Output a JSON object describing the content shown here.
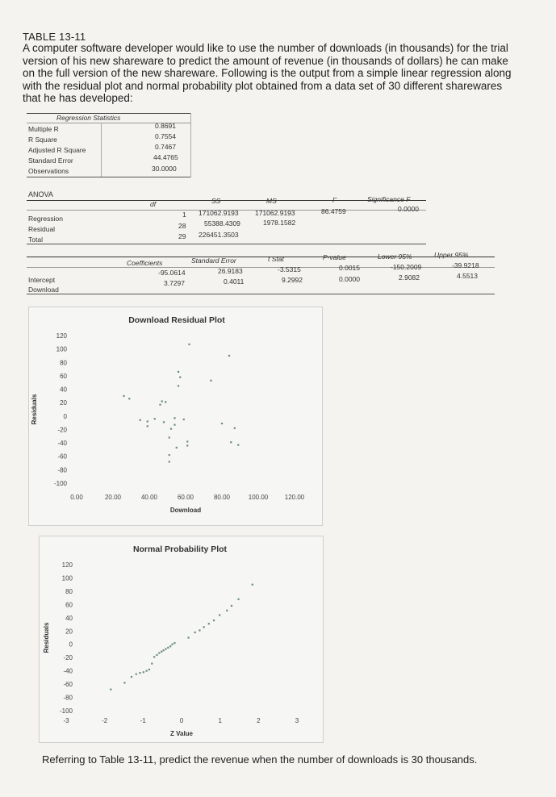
{
  "title": "TABLE 13-11",
  "intro": "A computer software developer would like to use the number of downloads (in thousands) for the trial version of his new shareware to predict the amount of revenue (in thousands of dollars) he can make on the full version of the new shareware. Following is the output from a simple linear regression along with the residual plot and normal probability plot obtained from a data set of 30 different sharewares that he has developed:",
  "regression_statistics": {
    "heading": "Regression Statistics",
    "rows": [
      {
        "label": "Multiple R",
        "value": "0.8691"
      },
      {
        "label": "R Square",
        "value": "0.7554"
      },
      {
        "label": "Adjusted R Square",
        "value": "0.7467"
      },
      {
        "label": "Standard Error",
        "value": "44.4765"
      },
      {
        "label": "Observations",
        "value": "30.0000"
      }
    ]
  },
  "anova": {
    "heading": "ANOVA",
    "columns": [
      "df",
      "SS",
      "MS",
      "F",
      "Significance F"
    ],
    "rows": [
      {
        "label": "Regression",
        "df": "1",
        "ss": "171062.9193",
        "ms": "171062.9193",
        "f": "86.4759",
        "sig": "0.0000"
      },
      {
        "label": "Residual",
        "df": "28",
        "ss": "55388.4309",
        "ms": "1978.1582",
        "f": "",
        "sig": ""
      },
      {
        "label": "Total",
        "df": "29",
        "ss": "226451.3503",
        "ms": "",
        "f": "",
        "sig": ""
      }
    ]
  },
  "coefficients": {
    "columns": [
      "Coefficients",
      "Standard Error",
      "t Stat",
      "P-value",
      "Lower 95%",
      "Upper 95%"
    ],
    "rows": [
      {
        "label": "Intercept",
        "coef": "-95.0614",
        "se": "26.9183",
        "t": "-3.5315",
        "p": "0.0015",
        "lower": "-150.2009",
        "upper": "-39.9218"
      },
      {
        "label": "Download",
        "coef": "3.7297",
        "se": "0.4011",
        "t": "9.2992",
        "p": "0.0000",
        "lower": "2.9082",
        "upper": "4.5513"
      }
    ]
  },
  "chart_data": [
    {
      "type": "scatter",
      "title": "Download Residual Plot",
      "xlabel": "Download",
      "ylabel": "Residuals",
      "xlim": [
        0,
        120
      ],
      "ylim": [
        -100,
        120
      ],
      "x_ticks": [
        "0.00",
        "20.00",
        "40.00",
        "60.00",
        "80.00",
        "100.00",
        "120.00"
      ],
      "y_ticks": [
        "120",
        "100",
        "80",
        "60",
        "40",
        "20",
        "0",
        "-20",
        "-40",
        "-60",
        "-80",
        "-100"
      ],
      "color": "#6b8e7a",
      "points": [
        {
          "x": 26,
          "y": 30
        },
        {
          "x": 29,
          "y": 26
        },
        {
          "x": 35,
          "y": -6
        },
        {
          "x": 39,
          "y": -8
        },
        {
          "x": 39,
          "y": -15
        },
        {
          "x": 43,
          "y": -4
        },
        {
          "x": 46,
          "y": 17
        },
        {
          "x": 47,
          "y": 22
        },
        {
          "x": 48,
          "y": -9
        },
        {
          "x": 49,
          "y": 21
        },
        {
          "x": 51,
          "y": -68
        },
        {
          "x": 51,
          "y": -58
        },
        {
          "x": 51,
          "y": -32
        },
        {
          "x": 52,
          "y": -19
        },
        {
          "x": 54,
          "y": -13
        },
        {
          "x": 54,
          "y": -3
        },
        {
          "x": 55,
          "y": -47
        },
        {
          "x": 56,
          "y": 66
        },
        {
          "x": 56,
          "y": 45
        },
        {
          "x": 57,
          "y": 58
        },
        {
          "x": 59,
          "y": -5
        },
        {
          "x": 61,
          "y": -38
        },
        {
          "x": 61,
          "y": -44
        },
        {
          "x": 62,
          "y": 107
        },
        {
          "x": 74,
          "y": 53
        },
        {
          "x": 80,
          "y": -11
        },
        {
          "x": 84,
          "y": 90
        },
        {
          "x": 85,
          "y": -39
        },
        {
          "x": 87,
          "y": -18
        },
        {
          "x": 89,
          "y": -43
        }
      ]
    },
    {
      "type": "scatter",
      "title": "Normal Probability Plot",
      "xlabel": "Z Value",
      "ylabel": "Residuals",
      "xlim": [
        -3,
        3
      ],
      "ylim": [
        -100,
        120
      ],
      "x_ticks": [
        "-3",
        "-2",
        "-1",
        "0",
        "1",
        "2",
        "3"
      ],
      "y_ticks": [
        "120",
        "100",
        "80",
        "60",
        "40",
        "20",
        "0",
        "-20",
        "-40",
        "-60",
        "-80",
        "-100"
      ],
      "color": "#6b8e7a",
      "points": [
        {
          "x": -1.84,
          "y": -68
        },
        {
          "x": -1.48,
          "y": -58
        },
        {
          "x": -1.3,
          "y": -49
        },
        {
          "x": -1.18,
          "y": -45
        },
        {
          "x": -1.08,
          "y": -43
        },
        {
          "x": -0.99,
          "y": -42
        },
        {
          "x": -0.91,
          "y": -40
        },
        {
          "x": -0.84,
          "y": -38
        },
        {
          "x": -0.77,
          "y": -29
        },
        {
          "x": -0.71,
          "y": -19
        },
        {
          "x": -0.64,
          "y": -16
        },
        {
          "x": -0.58,
          "y": -13
        },
        {
          "x": -0.52,
          "y": -11
        },
        {
          "x": -0.47,
          "y": -9
        },
        {
          "x": -0.41,
          "y": -7
        },
        {
          "x": -0.35,
          "y": -5
        },
        {
          "x": -0.29,
          "y": -3
        },
        {
          "x": -0.24,
          "y": 0
        },
        {
          "x": -0.18,
          "y": 2
        },
        {
          "x": 0.18,
          "y": 10
        },
        {
          "x": 0.35,
          "y": 18
        },
        {
          "x": 0.47,
          "y": 21
        },
        {
          "x": 0.58,
          "y": 26
        },
        {
          "x": 0.71,
          "y": 31
        },
        {
          "x": 0.84,
          "y": 36
        },
        {
          "x": 0.99,
          "y": 44
        },
        {
          "x": 1.18,
          "y": 51
        },
        {
          "x": 1.3,
          "y": 58
        },
        {
          "x": 1.48,
          "y": 68
        },
        {
          "x": 1.84,
          "y": 90
        }
      ]
    }
  ],
  "question": "Referring to Table 13-11, predict the revenue when the number of downloads is 30 thousands."
}
